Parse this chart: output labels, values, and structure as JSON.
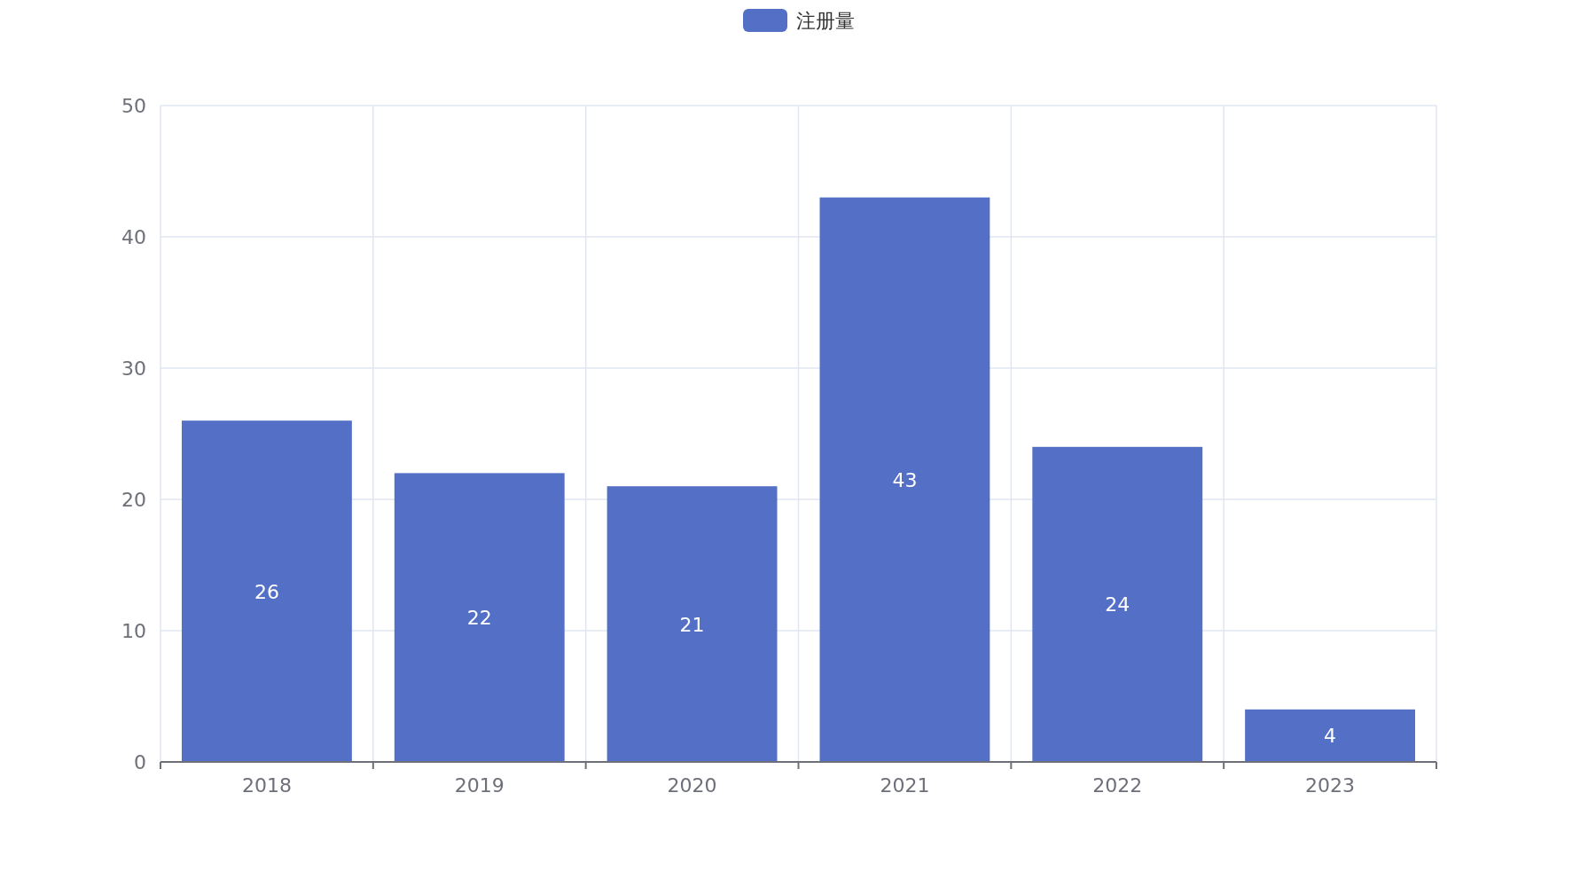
{
  "chart_data": {
    "type": "bar",
    "categories": [
      "2018",
      "2019",
      "2020",
      "2021",
      "2022",
      "2023"
    ],
    "series": [
      {
        "name": "注册量",
        "color": "#5470c6",
        "values": [
          26,
          22,
          21,
          43,
          24,
          4
        ]
      }
    ],
    "ylim": [
      0,
      50
    ],
    "yticks": [
      0,
      10,
      20,
      30,
      40,
      50
    ],
    "grid": true,
    "legend": "top",
    "data_labels": true
  }
}
